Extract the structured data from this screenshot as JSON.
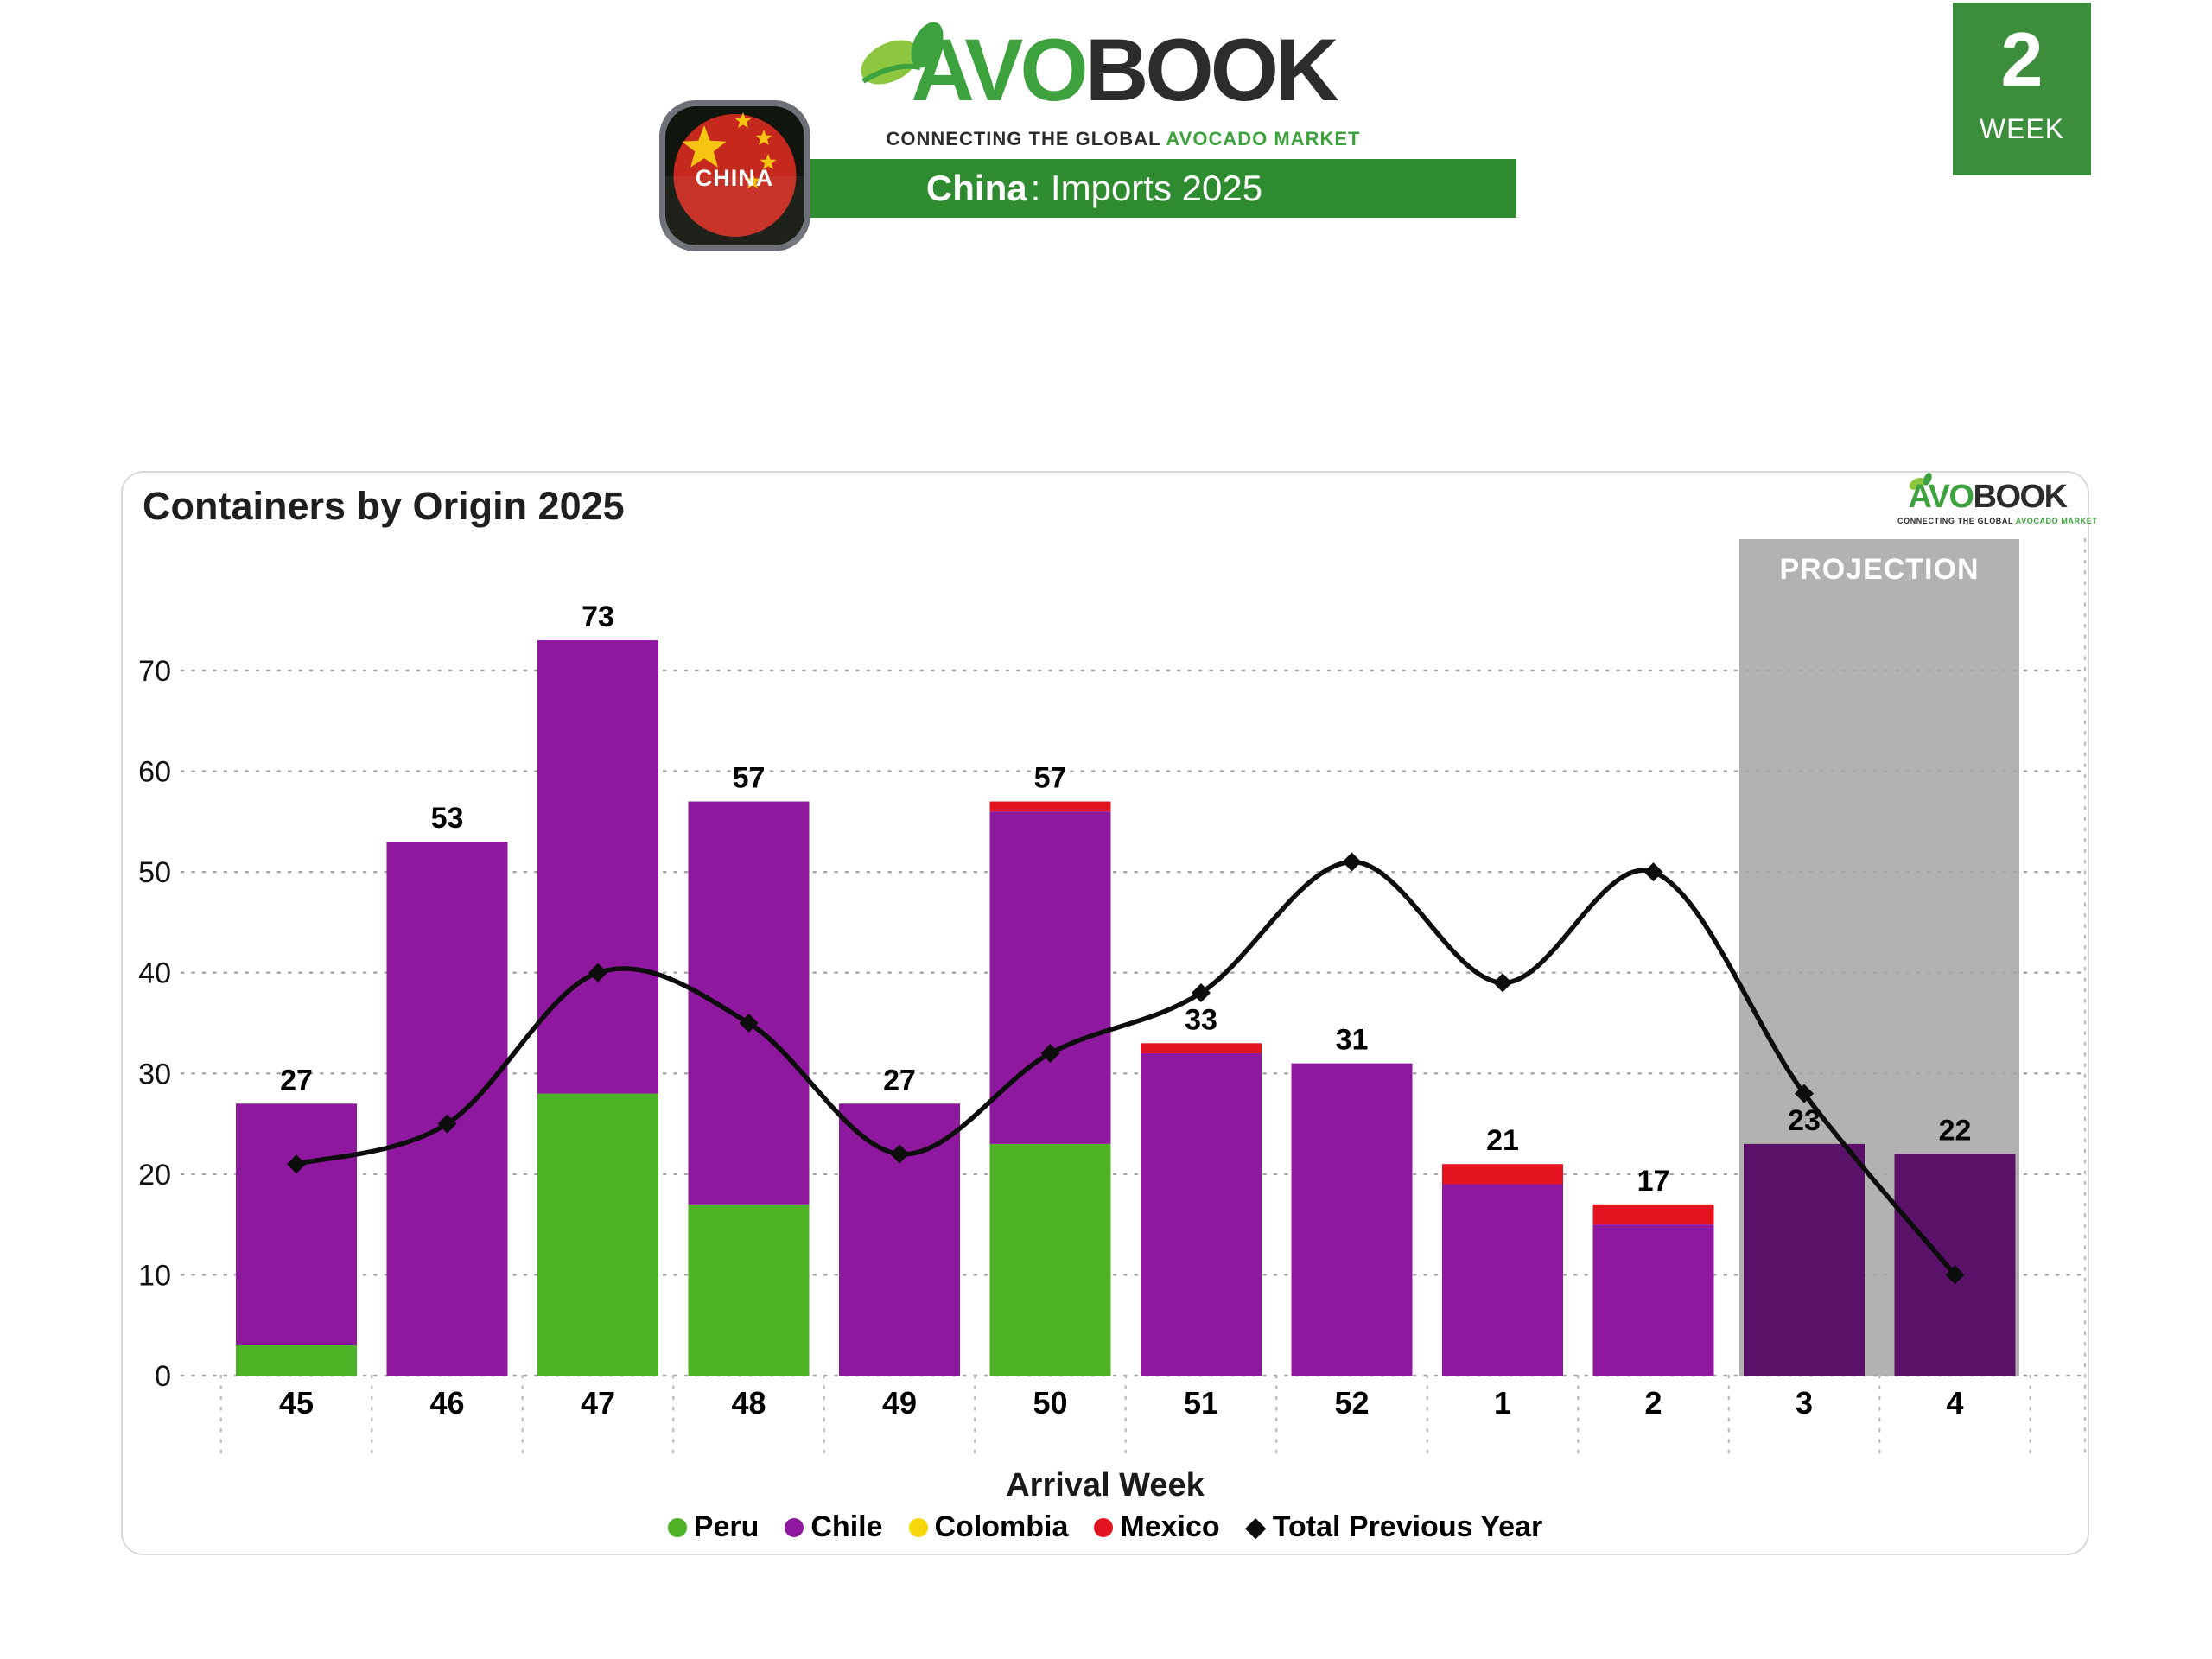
{
  "header": {
    "logo": {
      "avo": "AVO",
      "book": "BOOK",
      "tagline_dark": "CONNECTING THE GLOBAL ",
      "tagline_green": "AVOCADO MARKET"
    },
    "banner": {
      "country": "China",
      "rest": ": Imports 2025"
    },
    "flag_label": "CHINA",
    "week_box": {
      "number": "2",
      "label": "WEEK"
    }
  },
  "card": {
    "title": "Containers by Origin 2025",
    "xlabel": "Arrival Week"
  },
  "chart_data": {
    "type": "bar",
    "subtype": "stacked-bars-with-line",
    "title": "Containers by Origin 2025",
    "xlabel": "Arrival Week",
    "ylabel": "",
    "categories": [
      "45",
      "46",
      "47",
      "48",
      "49",
      "50",
      "51",
      "52",
      "1",
      "2",
      "3",
      "4"
    ],
    "series": [
      {
        "name": "Peru",
        "color": "#4db224",
        "values": [
          3,
          0,
          28,
          17,
          0,
          23,
          0,
          0,
          0,
          0,
          0,
          0
        ]
      },
      {
        "name": "Chile",
        "color": "#8e189e",
        "values": [
          24,
          53,
          45,
          40,
          27,
          33,
          32,
          31,
          19,
          15,
          23,
          22
        ]
      },
      {
        "name": "Colombia",
        "color": "#f7d708",
        "values": [
          0,
          0,
          0,
          0,
          0,
          0,
          0,
          0,
          0,
          0,
          0,
          0
        ]
      },
      {
        "name": "Mexico",
        "color": "#e31420",
        "values": [
          0,
          0,
          0,
          0,
          0,
          1,
          1,
          0,
          2,
          2,
          0,
          0
        ]
      }
    ],
    "totals": [
      27,
      53,
      73,
      57,
      27,
      57,
      33,
      31,
      21,
      17,
      23,
      22
    ],
    "line": {
      "name": "Total Previous Year",
      "color": "#0d0d0d",
      "values": [
        21,
        25,
        40,
        35,
        22,
        32,
        38,
        51,
        39,
        50,
        28,
        10
      ]
    },
    "projection": {
      "label": "PROJECTION",
      "start_category": "3",
      "band_color": "#b2b2b2",
      "bar_color": "#5a1168"
    },
    "yticks": [
      0,
      10,
      20,
      30,
      40,
      50,
      60,
      70
    ],
    "ylim": [
      0,
      77
    ],
    "grid": "horizontal-dotted",
    "legend_position": "bottom"
  },
  "legend": {
    "items": [
      {
        "label": "Peru",
        "color": "#4db224",
        "marker": "circle"
      },
      {
        "label": "Chile",
        "color": "#8e189e",
        "marker": "circle"
      },
      {
        "label": "Colombia",
        "color": "#f7d708",
        "marker": "circle"
      },
      {
        "label": "Mexico",
        "color": "#e31420",
        "marker": "circle"
      },
      {
        "label": "Total Previous Year",
        "color": "#0d0d0d",
        "marker": "diamond"
      }
    ]
  }
}
